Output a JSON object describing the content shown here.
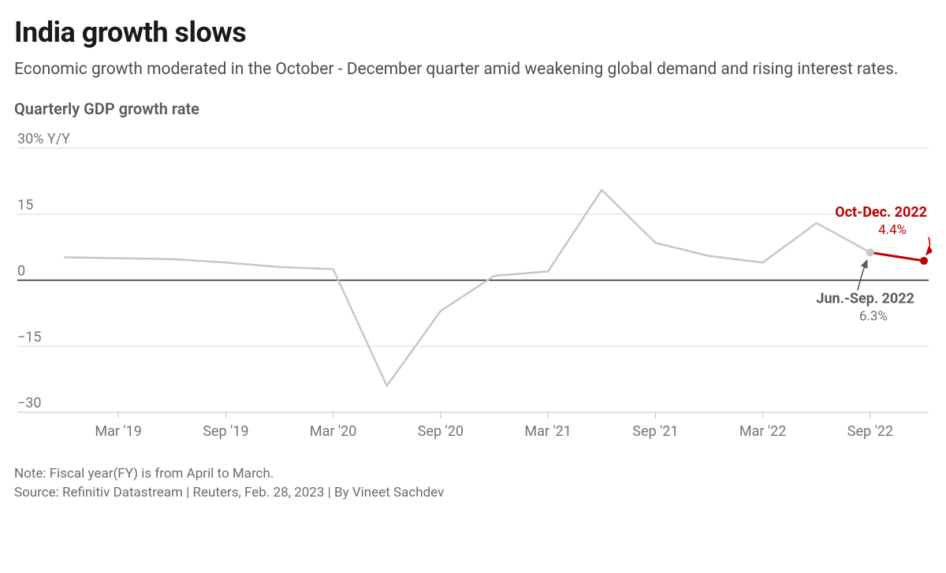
{
  "title": "India growth slows",
  "subtitle": "Economic growth moderated in the October - December quarter amid weakening global demand and rising interest rates.",
  "chart": {
    "label": "Quarterly GDP growth rate",
    "type": "line",
    "y_axis": {
      "top_label": "30% Y/Y",
      "ticks": [
        -30,
        -15,
        0,
        15,
        30
      ],
      "tick_labels_extra": {
        "-30": "−30",
        "-15": "−15",
        "0": "0",
        "15": "15"
      },
      "ymin": -30,
      "ymax": 30
    },
    "x_axis": {
      "ticks": [
        "Mar '19",
        "Sep '19",
        "Mar '20",
        "Sep '20",
        "Mar '21",
        "Sep '21",
        "Mar '22",
        "Sep '22"
      ]
    },
    "series": {
      "values": [
        5.2,
        5.0,
        4.8,
        4.0,
        3.0,
        2.5,
        -24.0,
        -7.0,
        1.0,
        2.0,
        20.5,
        8.5,
        5.5,
        4.0,
        13.0,
        6.3,
        4.4
      ],
      "highlight_start_index": 15,
      "highlight_end_index": 16
    },
    "annotations": {
      "prev": {
        "title": "Jun.-Sep. 2022",
        "value": "6.3%"
      },
      "latest": {
        "title": "Oct-Dec. 2022",
        "value": "4.4%"
      }
    },
    "colors": {
      "line": "#c7c7c7",
      "highlight": "#c00000",
      "zero_line": "#222222",
      "grid": "#d9d9d9",
      "baseline": "#bfbfbf",
      "tick_text": "#737373",
      "anno_grey_text": "#6e6e6e",
      "anno_grey_title": "#5a5a5a"
    },
    "style": {
      "line_width": 2.5,
      "highlight_line_width": 3,
      "marker_radius_grey": 5,
      "marker_radius_red": 5,
      "tick_fontsize": 18,
      "anno_title_fontsize": 18,
      "anno_value_fontsize": 17
    }
  },
  "footnote": {
    "note": "Note: Fiscal year(FY) is from April to March.",
    "source": "Source: Refinitiv Datastream | Reuters, Feb. 28, 2023 | By Vineet Sachdev"
  }
}
